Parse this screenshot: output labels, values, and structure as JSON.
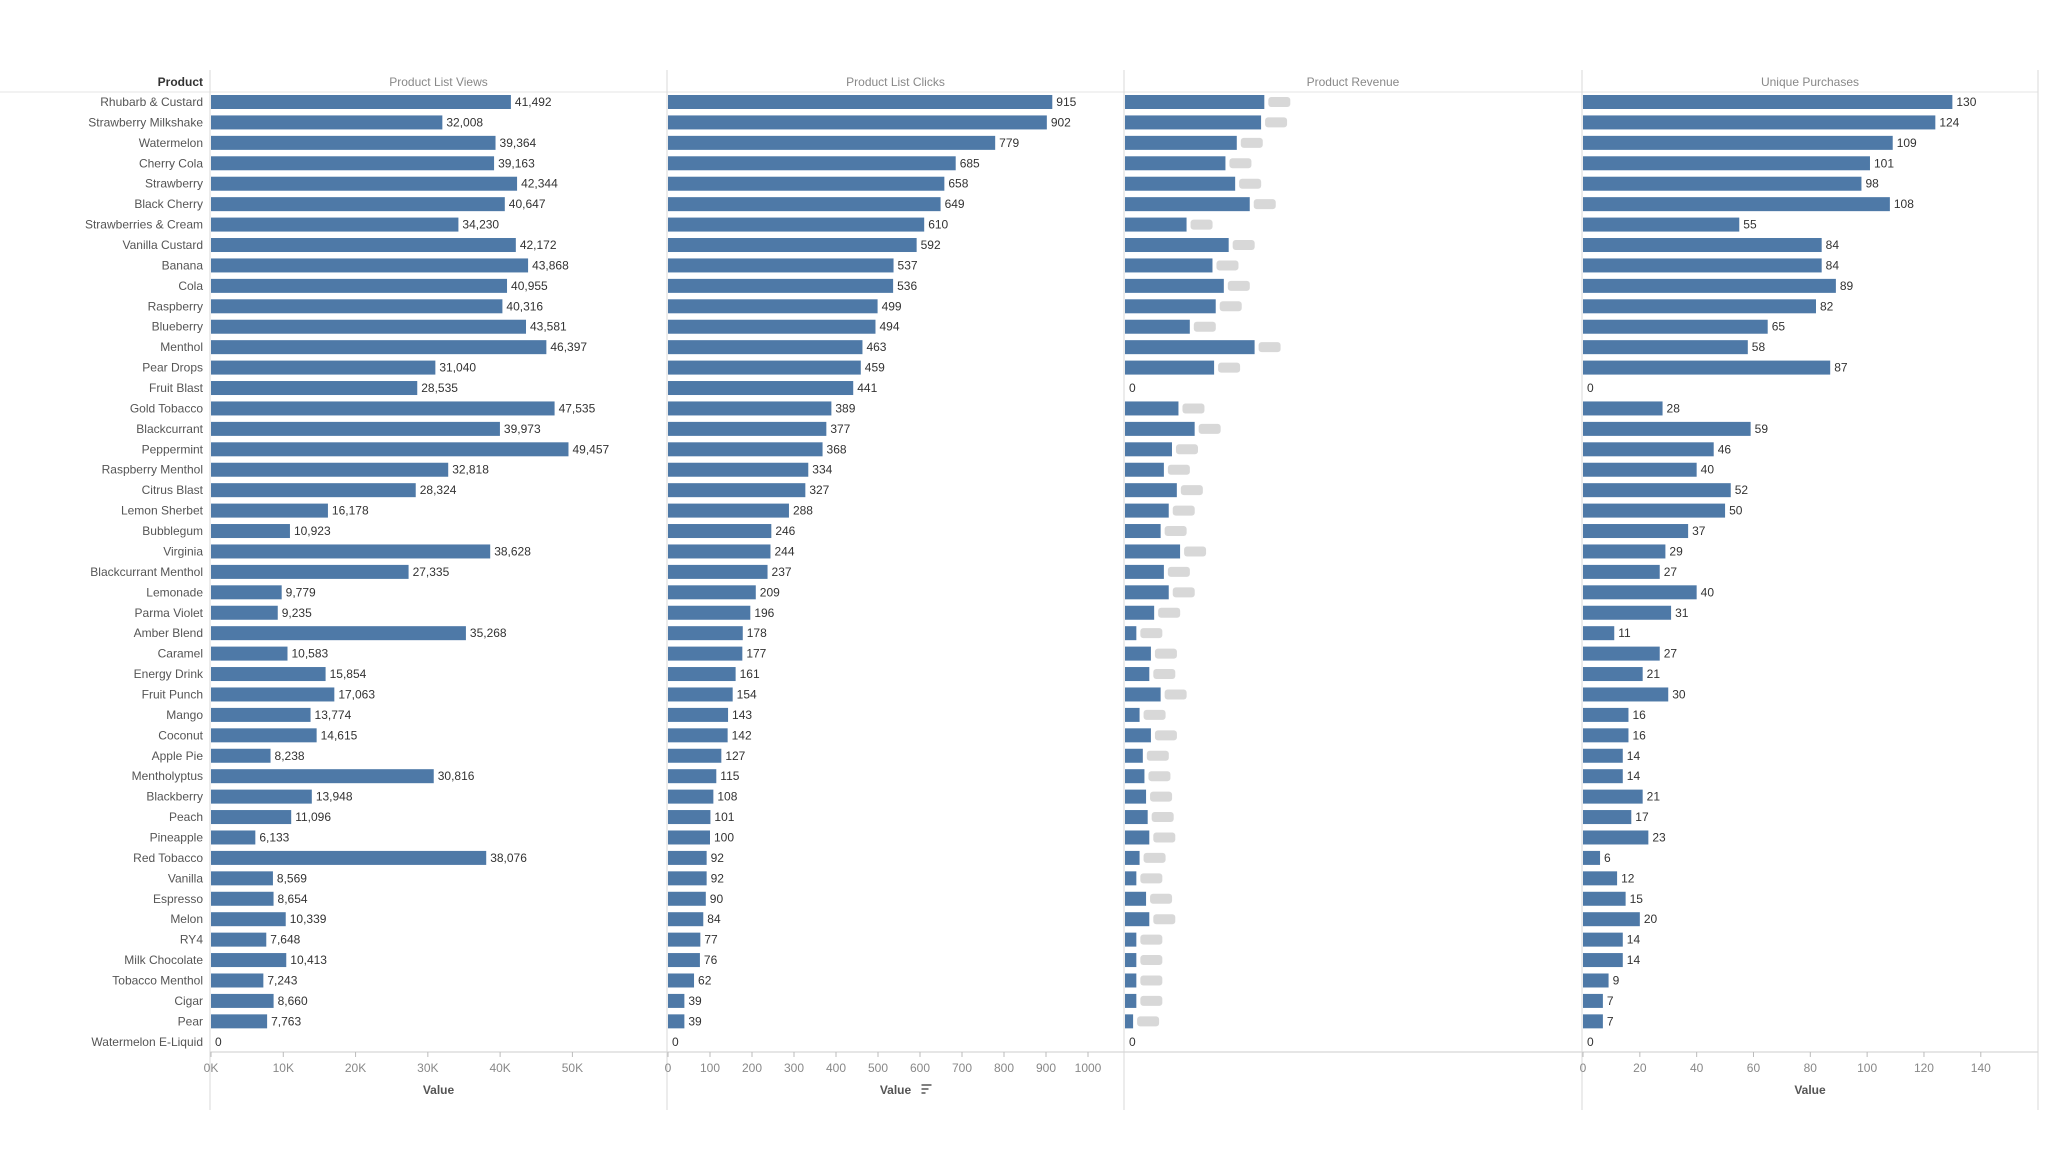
{
  "product_header": "Product",
  "colors": {
    "bar": "#4e79a7",
    "grid": "#e6e6e6",
    "text": "#333333",
    "muted": "#888888"
  },
  "products": [
    "Rhubarb & Custard",
    "Strawberry Milkshake",
    "Watermelon",
    "Cherry Cola",
    "Strawberry",
    "Black Cherry",
    "Strawberries & Cream",
    "Vanilla Custard",
    "Banana",
    "Cola",
    "Raspberry",
    "Blueberry",
    "Menthol",
    "Pear Drops",
    "Fruit Blast",
    "Gold Tobacco",
    "Blackcurrant",
    "Peppermint",
    "Raspberry Menthol",
    "Citrus Blast",
    "Lemon Sherbet",
    "Bubblegum",
    "Virginia",
    "Blackcurrant Menthol",
    "Lemonade",
    "Parma Violet",
    "Amber Blend",
    "Caramel",
    "Energy Drink",
    "Fruit Punch",
    "Mango",
    "Coconut",
    "Apple Pie",
    "Mentholyptus",
    "Blackberry",
    "Peach",
    "Pineapple",
    "Red Tobacco",
    "Vanilla",
    "Espresso",
    "Melon",
    "RY4",
    "Milk Chocolate",
    "Tobacco Menthol",
    "Cigar",
    "Pear",
    "Watermelon E-Liquid"
  ],
  "chart_data": [
    {
      "type": "bar",
      "orientation": "horizontal",
      "title": "Product List Views",
      "xlabel": "Value",
      "xlim": [
        0,
        57000
      ],
      "ticks": [
        0,
        10000,
        20000,
        30000,
        40000,
        50000
      ],
      "tick_labels": [
        "0K",
        "10K",
        "20K",
        "30K",
        "40K",
        "50K"
      ],
      "values": [
        41492,
        32008,
        39364,
        39163,
        42344,
        40647,
        34230,
        42172,
        43868,
        40955,
        40316,
        43581,
        46397,
        31040,
        28535,
        47535,
        39973,
        49457,
        32818,
        28324,
        16178,
        10923,
        38628,
        27335,
        9779,
        9235,
        35268,
        10583,
        15854,
        17063,
        13774,
        14615,
        8238,
        30816,
        13948,
        11096,
        6133,
        38076,
        8569,
        8654,
        10339,
        7648,
        10413,
        7243,
        8660,
        7763,
        0
      ],
      "labels": [
        "41,492",
        "32,008",
        "39,364",
        "39,163",
        "42,344",
        "40,647",
        "34,230",
        "42,172",
        "43,868",
        "40,955",
        "40,316",
        "43,581",
        "46,397",
        "31,040",
        "28,535",
        "47,535",
        "39,973",
        "49,457",
        "32,818",
        "28,324",
        "16,178",
        "10,923",
        "38,628",
        "27,335",
        "9,779",
        "9,235",
        "35,268",
        "10,583",
        "15,854",
        "17,063",
        "13,774",
        "14,615",
        "8,238",
        "30,816",
        "13,948",
        "11,096",
        "6,133",
        "38,076",
        "8,569",
        "8,654",
        "10,339",
        "7,648",
        "10,413",
        "7,243",
        "8,660",
        "7,763",
        "0"
      ]
    },
    {
      "type": "bar",
      "orientation": "horizontal",
      "title": "Product List Clicks",
      "xlabel": "Value",
      "sort_icon": "sort-descending-icon",
      "xlim": [
        0,
        1000
      ],
      "ticks": [
        0,
        100,
        200,
        300,
        400,
        500,
        600,
        700,
        800,
        900,
        1000
      ],
      "tick_labels": [
        "0",
        "100",
        "200",
        "300",
        "400",
        "500",
        "600",
        "700",
        "800",
        "900",
        "1000"
      ],
      "values": [
        915,
        902,
        779,
        685,
        658,
        649,
        610,
        592,
        537,
        536,
        499,
        494,
        463,
        459,
        441,
        389,
        377,
        368,
        334,
        327,
        288,
        246,
        244,
        237,
        209,
        196,
        178,
        177,
        161,
        154,
        143,
        142,
        127,
        115,
        108,
        101,
        100,
        92,
        92,
        90,
        84,
        77,
        76,
        62,
        39,
        39,
        0
      ],
      "labels": [
        "915",
        "902",
        "779",
        "685",
        "658",
        "649",
        "610",
        "592",
        "537",
        "536",
        "499",
        "494",
        "463",
        "459",
        "441",
        "389",
        "377",
        "368",
        "334",
        "327",
        "288",
        "246",
        "244",
        "237",
        "209",
        "196",
        "178",
        "177",
        "161",
        "154",
        "143",
        "142",
        "127",
        "115",
        "108",
        "101",
        "100",
        "92",
        "92",
        "90",
        "84",
        "77",
        "76",
        "62",
        "39",
        "39",
        "0"
      ]
    },
    {
      "type": "bar",
      "orientation": "horizontal",
      "title": "Product Revenue",
      "xlabel": "",
      "labels_blurred": true,
      "values": [
        0.86,
        0.84,
        0.69,
        0.62,
        0.68,
        0.77,
        0.38,
        0.64,
        0.54,
        0.61,
        0.56,
        0.4,
        0.8,
        0.55,
        0,
        0.33,
        0.43,
        0.29,
        0.24,
        0.32,
        0.27,
        0.22,
        0.34,
        0.24,
        0.27,
        0.18,
        0.07,
        0.16,
        0.15,
        0.22,
        0.09,
        0.16,
        0.11,
        0.12,
        0.13,
        0.14,
        0.15,
        0.09,
        0.07,
        0.13,
        0.15,
        0.07,
        0.07,
        0.07,
        0.07,
        0.05,
        0
      ],
      "labels": [
        "",
        "",
        "",
        "",
        "",
        "",
        "",
        "",
        "",
        "",
        "",
        "",
        "",
        "",
        "0",
        "",
        "",
        "",
        "",
        "",
        "",
        "",
        "",
        "",
        "",
        "",
        "",
        "",
        "",
        "",
        "",
        "",
        "",
        "",
        "",
        "",
        "",
        "",
        "",
        "",
        "",
        "",
        "",
        "",
        "",
        "",
        "0"
      ]
    },
    {
      "type": "bar",
      "orientation": "horizontal",
      "title": "Unique Purchases",
      "xlabel": "Value",
      "xlim": [
        0,
        145
      ],
      "ticks": [
        0,
        20,
        40,
        60,
        80,
        100,
        120,
        140
      ],
      "tick_labels": [
        "0",
        "20",
        "40",
        "60",
        "80",
        "100",
        "120",
        "140"
      ],
      "values": [
        130,
        124,
        109,
        101,
        98,
        108,
        55,
        84,
        84,
        89,
        82,
        65,
        58,
        87,
        0,
        28,
        59,
        46,
        40,
        52,
        50,
        37,
        29,
        27,
        40,
        31,
        11,
        27,
        21,
        30,
        16,
        16,
        14,
        14,
        21,
        17,
        23,
        6,
        12,
        15,
        20,
        14,
        14,
        9,
        7,
        7,
        0
      ],
      "labels": [
        "130",
        "124",
        "109",
        "101",
        "98",
        "108",
        "55",
        "84",
        "84",
        "89",
        "82",
        "65",
        "58",
        "87",
        "0",
        "28",
        "59",
        "46",
        "40",
        "52",
        "50",
        "37",
        "29",
        "27",
        "40",
        "31",
        "11",
        "27",
        "21",
        "30",
        "16",
        "16",
        "14",
        "14",
        "21",
        "17",
        "23",
        "6",
        "12",
        "15",
        "20",
        "14",
        "14",
        "9",
        "7",
        "7",
        "0"
      ]
    }
  ]
}
